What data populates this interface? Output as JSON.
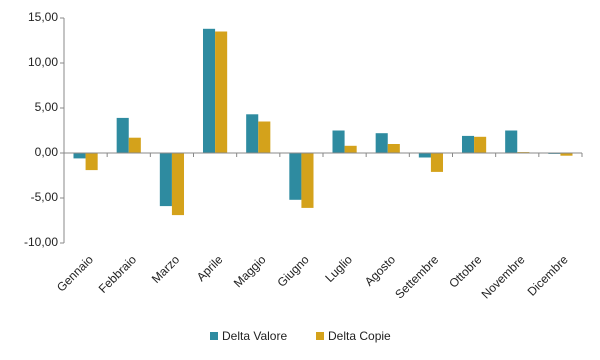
{
  "chart_data": {
    "type": "bar",
    "categories": [
      "Gennaio",
      "Febbraio",
      "Marzo",
      "Aprile",
      "Maggio",
      "Giugno",
      "Luglio",
      "Agosto",
      "Settembre",
      "Ottobre",
      "Novembre",
      "Dicembre"
    ],
    "series": [
      {
        "name": "Delta Valore",
        "color": "#2e8ba0",
        "values": [
          -0.6,
          3.9,
          -5.9,
          13.8,
          4.3,
          -5.2,
          2.5,
          2.2,
          -0.5,
          1.9,
          2.5,
          -0.1
        ]
      },
      {
        "name": "Delta Copie",
        "color": "#d4a21b",
        "values": [
          -1.9,
          1.7,
          -6.9,
          13.5,
          3.5,
          -6.1,
          0.8,
          1.0,
          -2.1,
          1.8,
          0.1,
          -0.3
        ]
      }
    ],
    "ylim": [
      -10,
      15
    ],
    "yticks": [
      {
        "value": -10,
        "label": "-10,00"
      },
      {
        "value": -5,
        "label": "-5,00"
      },
      {
        "value": 0,
        "label": "0,00"
      },
      {
        "value": 5,
        "label": "5,00"
      },
      {
        "value": 10,
        "label": "10,00"
      },
      {
        "value": 15,
        "label": "15,00"
      }
    ],
    "grid": false,
    "legend": "bottom"
  }
}
